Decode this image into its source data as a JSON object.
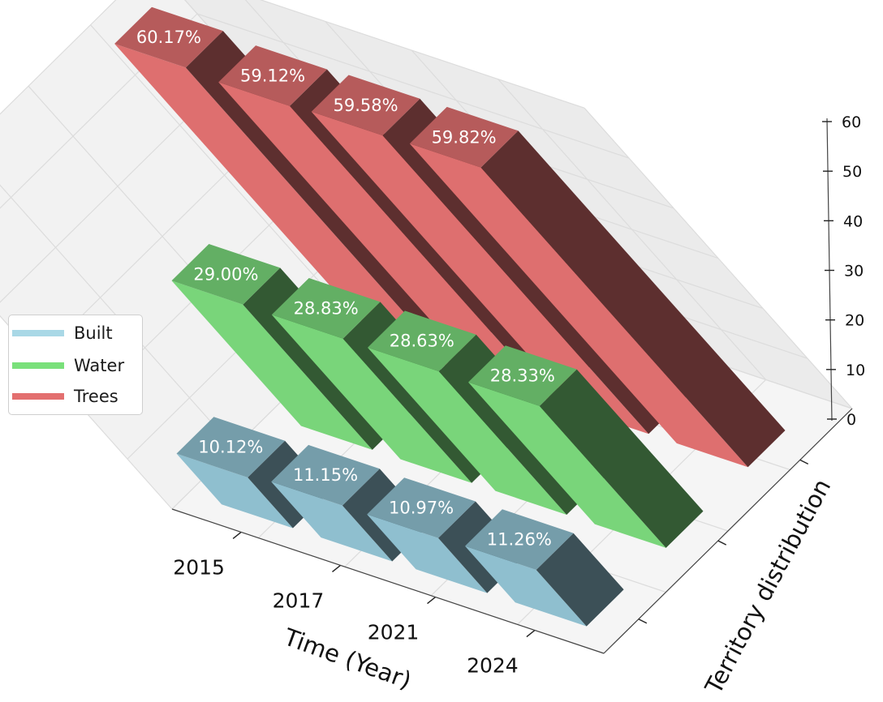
{
  "chart_data": {
    "type": "bar",
    "subtype": "3d-bar",
    "title": "",
    "xlabel": "Time (Year)",
    "ylabel": "Territory distribution",
    "categories": [
      "2015",
      "2017",
      "2021",
      "2024"
    ],
    "zlim": [
      0,
      60
    ],
    "zticks": [
      "0",
      "10",
      "20",
      "30",
      "40",
      "50",
      "60"
    ],
    "series": [
      {
        "name": "Built",
        "values": [
          10.12,
          11.15,
          10.97,
          11.26
        ],
        "labels": [
          "10.12%",
          "11.15%",
          "10.97%",
          "11.26%"
        ],
        "color": "#8fbfcf"
      },
      {
        "name": "Water",
        "values": [
          29.0,
          28.83,
          28.63,
          28.33
        ],
        "labels": [
          "29.00%",
          "28.83%",
          "28.63%",
          "28.33%"
        ],
        "color": "#79d57a"
      },
      {
        "name": "Trees",
        "values": [
          60.17,
          59.12,
          59.58,
          59.82
        ],
        "labels": [
          "60.17%",
          "59.12%",
          "59.58%",
          "59.82%"
        ],
        "color": "#de6f6f"
      }
    ],
    "legend_position": "left",
    "grid": true
  }
}
